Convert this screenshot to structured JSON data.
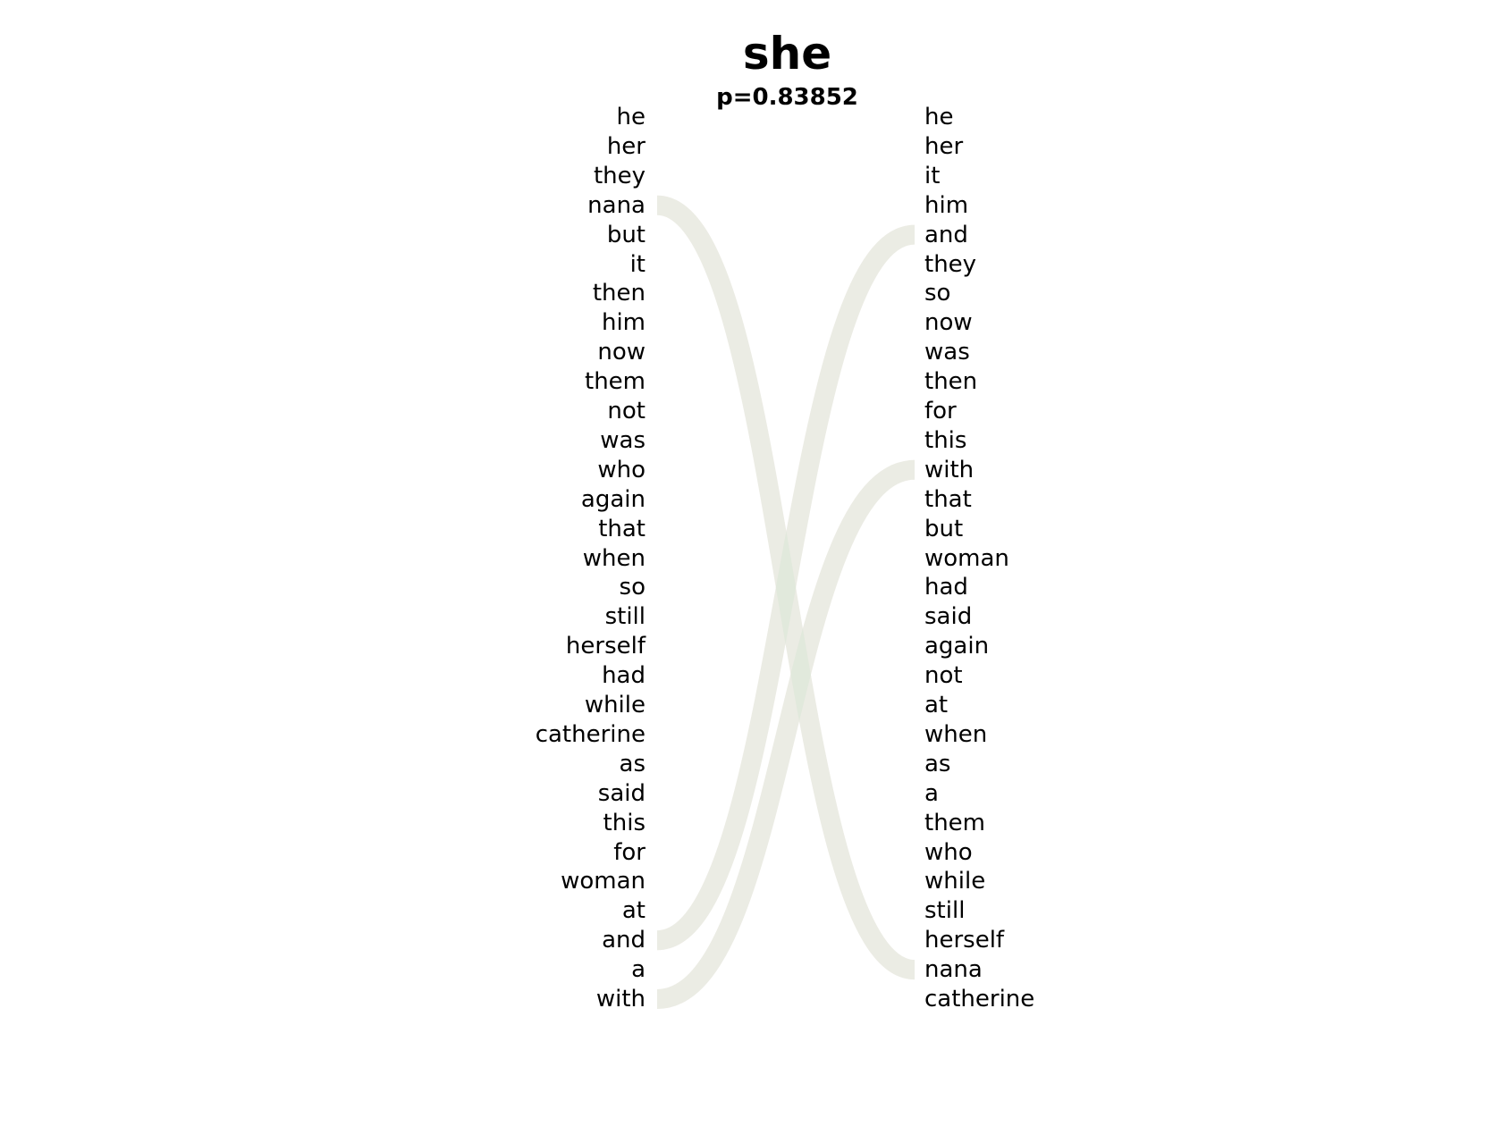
{
  "title": "she",
  "subtitle": "p=0.83852",
  "colors": {
    "left_link": "#f6d6d6",
    "right_link": "#d6ead9"
  },
  "left_words": [
    "he",
    "her",
    "they",
    "nana",
    "but",
    "it",
    "then",
    "him",
    "now",
    "them",
    "not",
    "was",
    "who",
    "again",
    "that",
    "when",
    "so",
    "still",
    "herself",
    "had",
    "while",
    "catherine",
    "as",
    "said",
    "this",
    "for",
    "woman",
    "at",
    "and",
    "a",
    "with"
  ],
  "right_words": [
    "he",
    "her",
    "it",
    "him",
    "and",
    "they",
    "so",
    "now",
    "was",
    "then",
    "for",
    "this",
    "with",
    "that",
    "but",
    "woman",
    "had",
    "said",
    "again",
    "not",
    "at",
    "when",
    "as",
    "a",
    "them",
    "who",
    "while",
    "still",
    "herself",
    "nana",
    "catherine"
  ],
  "links": [
    {
      "side": "left",
      "word": "nana"
    },
    {
      "side": "left",
      "word": "and"
    },
    {
      "side": "left",
      "word": "with"
    },
    {
      "side": "right",
      "word": "and"
    },
    {
      "side": "right",
      "word": "with"
    },
    {
      "side": "right",
      "word": "nana"
    }
  ]
}
